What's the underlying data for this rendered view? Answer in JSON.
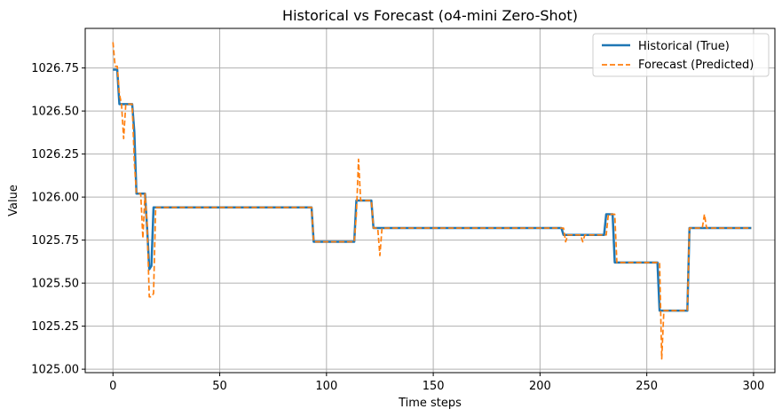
{
  "chart_data": {
    "type": "line",
    "title": "Historical vs Forecast (o4-mini Zero-Shot)",
    "xlabel": "Time steps",
    "ylabel": "Value",
    "xlim": [
      -13,
      310
    ],
    "ylim": [
      1024.98,
      1026.98
    ],
    "xticks": [
      0,
      50,
      100,
      150,
      200,
      250,
      300
    ],
    "yticks": [
      1025.0,
      1025.25,
      1025.5,
      1025.75,
      1026.0,
      1026.25,
      1026.5,
      1026.75
    ],
    "grid": true,
    "legend_position": "top-right",
    "series": [
      {
        "name": "Historical (True)",
        "color": "#1f77b4",
        "style": "solid",
        "points": [
          [
            0,
            1026.74
          ],
          [
            2,
            1026.74
          ],
          [
            3,
            1026.54
          ],
          [
            9,
            1026.54
          ],
          [
            10,
            1026.38
          ],
          [
            11,
            1026.02
          ],
          [
            15,
            1026.02
          ],
          [
            16,
            1025.82
          ],
          [
            17,
            1025.58
          ],
          [
            18,
            1025.6
          ],
          [
            19,
            1025.94
          ],
          [
            93,
            1025.94
          ],
          [
            94,
            1025.74
          ],
          [
            113,
            1025.74
          ],
          [
            114,
            1025.98
          ],
          [
            121,
            1025.98
          ],
          [
            122,
            1025.82
          ],
          [
            210,
            1025.82
          ],
          [
            211,
            1025.78
          ],
          [
            230,
            1025.78
          ],
          [
            231,
            1025.9
          ],
          [
            234,
            1025.9
          ],
          [
            235,
            1025.62
          ],
          [
            255,
            1025.62
          ],
          [
            256,
            1025.34
          ],
          [
            269,
            1025.34
          ],
          [
            270,
            1025.82
          ],
          [
            299,
            1025.82
          ]
        ]
      },
      {
        "name": "Forecast (Predicted)",
        "color": "#ff7f0e",
        "style": "dashed",
        "points": [
          [
            0,
            1026.9
          ],
          [
            1,
            1026.76
          ],
          [
            2,
            1026.76
          ],
          [
            3,
            1026.6
          ],
          [
            4,
            1026.54
          ],
          [
            5,
            1026.34
          ],
          [
            6,
            1026.54
          ],
          [
            9,
            1026.54
          ],
          [
            10,
            1026.2
          ],
          [
            11,
            1026.02
          ],
          [
            13,
            1026.02
          ],
          [
            14,
            1025.76
          ],
          [
            15,
            1026.02
          ],
          [
            16,
            1025.84
          ],
          [
            17,
            1025.42
          ],
          [
            18,
            1025.42
          ],
          [
            19,
            1025.44
          ],
          [
            20,
            1025.94
          ],
          [
            93,
            1025.94
          ],
          [
            94,
            1025.74
          ],
          [
            113,
            1025.74
          ],
          [
            114,
            1025.9
          ],
          [
            115,
            1026.22
          ],
          [
            116,
            1025.98
          ],
          [
            121,
            1025.98
          ],
          [
            122,
            1025.82
          ],
          [
            124,
            1025.82
          ],
          [
            125,
            1025.66
          ],
          [
            126,
            1025.82
          ],
          [
            211,
            1025.82
          ],
          [
            212,
            1025.74
          ],
          [
            213,
            1025.78
          ],
          [
            219,
            1025.78
          ],
          [
            220,
            1025.74
          ],
          [
            221,
            1025.78
          ],
          [
            231,
            1025.78
          ],
          [
            232,
            1025.9
          ],
          [
            235,
            1025.9
          ],
          [
            236,
            1025.62
          ],
          [
            256,
            1025.62
          ],
          [
            257,
            1025.06
          ],
          [
            258,
            1025.34
          ],
          [
            269,
            1025.34
          ],
          [
            270,
            1025.82
          ],
          [
            276,
            1025.82
          ],
          [
            277,
            1025.9
          ],
          [
            278,
            1025.82
          ],
          [
            299,
            1025.82
          ]
        ]
      }
    ]
  }
}
